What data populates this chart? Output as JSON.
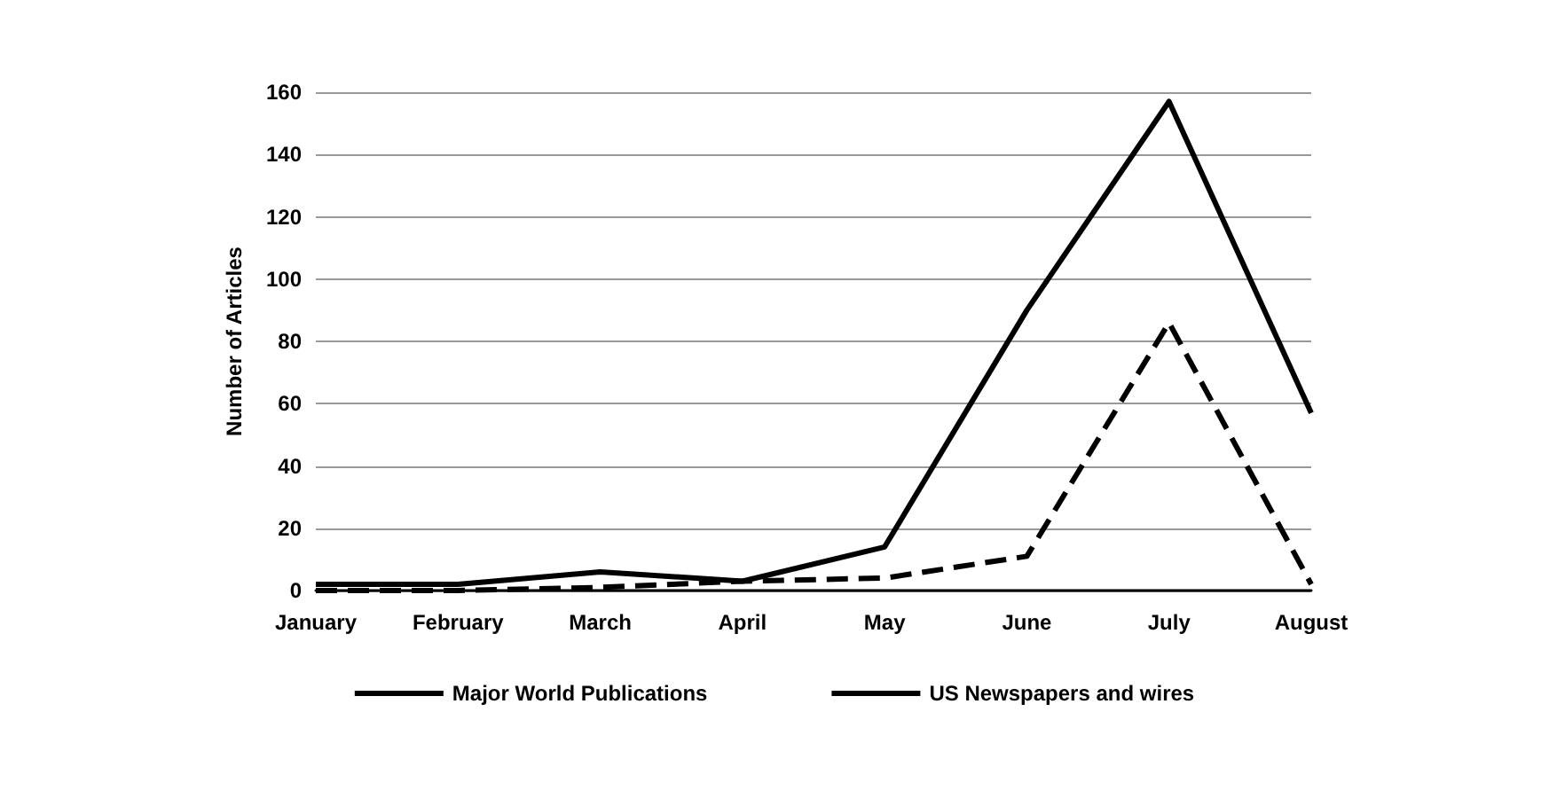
{
  "chart_data": {
    "type": "line",
    "ylabel": "Number of Articles",
    "categories": [
      "January",
      "February",
      "March",
      "April",
      "May",
      "June",
      "July",
      "August"
    ],
    "series": [
      {
        "name": "Major World Publications",
        "color": "#000000",
        "line_style": "solid",
        "values": [
          2,
          2,
          6,
          3,
          14,
          90,
          157,
          57
        ]
      },
      {
        "name": "US Newspapers and wires",
        "color": "#000000",
        "line_style": "dashed",
        "values": [
          0,
          0,
          1,
          3,
          4,
          11,
          86,
          2
        ]
      }
    ],
    "ylim": [
      0,
      160
    ],
    "yticks": [
      0,
      20,
      40,
      60,
      80,
      100,
      120,
      140,
      160
    ],
    "grid": "y",
    "legend": "bottom",
    "marker": "none"
  }
}
